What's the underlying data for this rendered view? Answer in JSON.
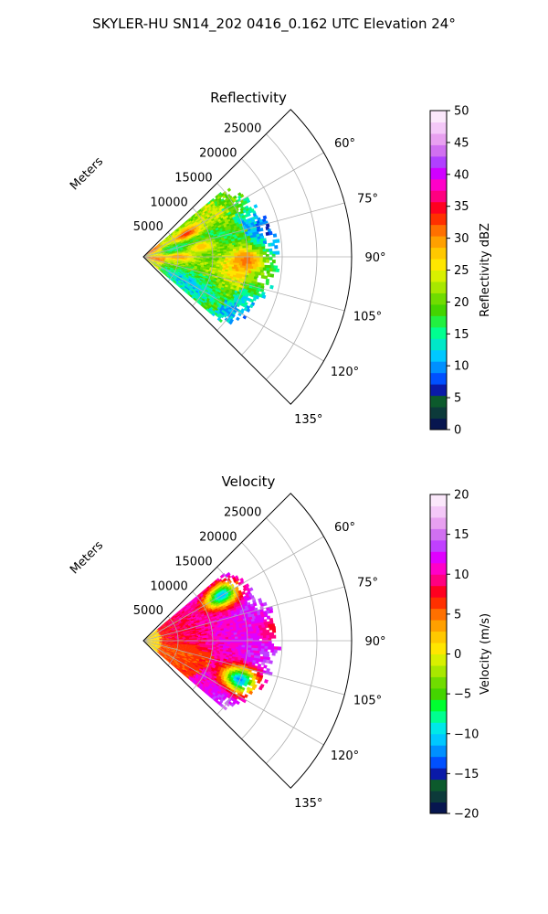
{
  "figure": {
    "suptitle": "SKYLER-HU  SN14_202  0416_0.162 UTC Elevation 24°"
  },
  "chart_data": [
    {
      "type": "heatmap",
      "projection": "polar-sector",
      "title": "Reflectivity",
      "radial_label": "Meters",
      "radial_ticks": [
        5000,
        10000,
        15000,
        20000,
        25000
      ],
      "radial_tick_labels": [
        "5000",
        "10000",
        "15000",
        "20000",
        "25000"
      ],
      "rlim": [
        0,
        30000
      ],
      "azimuth_range_deg": [
        45,
        135
      ],
      "azimuth_ticks_deg": [
        60,
        75,
        90,
        105,
        120,
        135
      ],
      "azimuth_tick_labels": [
        "60°",
        "75°",
        "90°",
        "105°",
        "120°",
        "135°"
      ],
      "data_extent": {
        "azimuth_deg": [
          50,
          130
        ],
        "range_m": [
          0,
          20000
        ]
      },
      "grid": true,
      "colorbar": {
        "label": "Reflectivity dBZ",
        "range": [
          0,
          50
        ],
        "ticks": [
          0,
          5,
          10,
          15,
          20,
          25,
          30,
          35,
          40,
          45,
          50
        ],
        "tick_labels": [
          "0",
          "5",
          "10",
          "15",
          "20",
          "25",
          "30",
          "35",
          "40",
          "45",
          "50"
        ],
        "colors": [
          "#07164f",
          "#0c3a3a",
          "#0c5a2c",
          "#0a1aa8",
          "#0050ff",
          "#0090ff",
          "#00c8ff",
          "#00e8c8",
          "#00ff90",
          "#22f040",
          "#44d400",
          "#70dc00",
          "#a8e800",
          "#d8f000",
          "#ffe600",
          "#ffc800",
          "#ffa000",
          "#ff7000",
          "#ff3000",
          "#ff0020",
          "#ff0080",
          "#ff00c8",
          "#d000ff",
          "#b040ff",
          "#d070f0",
          "#e8a0f0",
          "#f4c8f8",
          "#fbe8fb"
        ]
      },
      "features": [
        {
          "azimuth_deg": 62,
          "range_m": 7000,
          "value": 33
        },
        {
          "azimuth_deg": 80,
          "range_m": 8500,
          "value": 28
        },
        {
          "azimuth_deg": 90,
          "range_m": 5000,
          "value": 30
        },
        {
          "azimuth_deg": 92,
          "range_m": 15000,
          "value": 31
        }
      ]
    },
    {
      "type": "heatmap",
      "projection": "polar-sector",
      "title": "Velocity",
      "radial_label": "Meters",
      "radial_ticks": [
        5000,
        10000,
        15000,
        20000,
        25000
      ],
      "radial_tick_labels": [
        "5000",
        "10000",
        "15000",
        "20000",
        "25000"
      ],
      "rlim": [
        0,
        30000
      ],
      "azimuth_range_deg": [
        45,
        135
      ],
      "azimuth_ticks_deg": [
        60,
        75,
        90,
        105,
        120,
        135
      ],
      "azimuth_tick_labels": [
        "60°",
        "75°",
        "90°",
        "105°",
        "120°",
        "135°"
      ],
      "data_extent": {
        "azimuth_deg": [
          50,
          130
        ],
        "range_m": [
          0,
          20000
        ]
      },
      "grid": true,
      "colorbar": {
        "label": "Velocity (m/s)",
        "range": [
          -20,
          20
        ],
        "ticks": [
          -20,
          -15,
          -10,
          -5,
          0,
          5,
          10,
          15,
          20
        ],
        "tick_labels": [
          "−20",
          "−15",
          "−10",
          "−5",
          "0",
          "5",
          "10",
          "15",
          "20"
        ],
        "colors": [
          "#07164f",
          "#0c3a3a",
          "#0c5a2c",
          "#0a1aa8",
          "#0050ff",
          "#0090ff",
          "#00c8ff",
          "#00e8e8",
          "#00ff90",
          "#00ff30",
          "#44d400",
          "#70dc00",
          "#a8e800",
          "#d8f000",
          "#ffe600",
          "#ffc800",
          "#ffa000",
          "#ff7000",
          "#ff3000",
          "#ff0020",
          "#ff0080",
          "#ff00c8",
          "#e000ff",
          "#c040ff",
          "#d070f0",
          "#e8a0f0",
          "#f4c8f8",
          "#fbe8fb"
        ]
      },
      "features": [
        {
          "azimuth_deg": 60,
          "range_m": 13000,
          "value": -11
        },
        {
          "azimuth_deg": 112,
          "range_m": 15000,
          "value": -12
        },
        {
          "azimuth_deg": 85,
          "range_m": 19000,
          "value": 8
        },
        {
          "azimuth_deg": 100,
          "range_m": 6000,
          "value": 6
        }
      ]
    }
  ]
}
